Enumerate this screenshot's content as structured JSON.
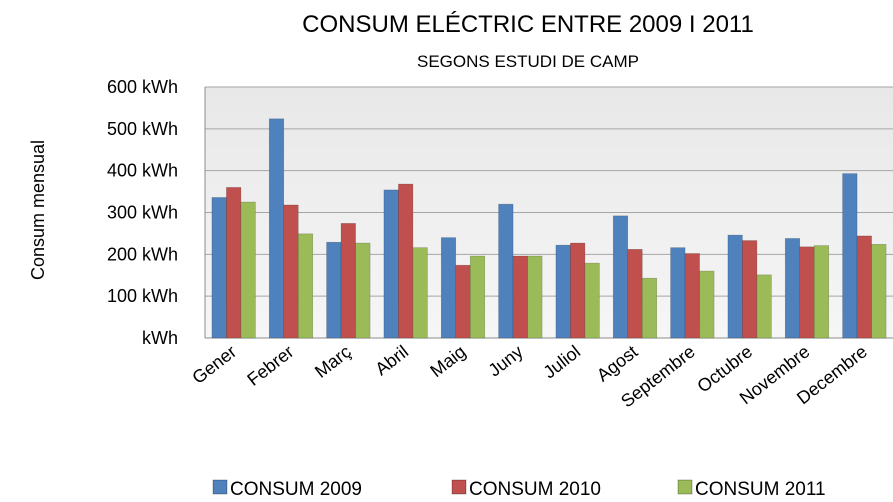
{
  "chart_data": {
    "type": "bar",
    "title": "CONSUM ELÉCTRIC ENTRE 2009 I 2011",
    "subtitle": "SEGONS ESTUDI DE CAMP",
    "xlabel": "",
    "ylabel": "Consum mensual",
    "ylim": [
      0,
      600
    ],
    "yticks": [
      {
        "value": 0,
        "label": "kWh"
      },
      {
        "value": 100,
        "label": "100 kWh"
      },
      {
        "value": 200,
        "label": "200 kWh"
      },
      {
        "value": 300,
        "label": "300 kWh"
      },
      {
        "value": 400,
        "label": "400 kWh"
      },
      {
        "value": 500,
        "label": "500 kWh"
      },
      {
        "value": 600,
        "label": "600 kWh"
      }
    ],
    "grid": true,
    "legend_position": "bottom",
    "categories": [
      "Gener",
      "Febrer",
      "Març",
      "Abril",
      "Maig",
      "Juny",
      "Juliol",
      "Agost",
      "Septembre",
      "Octubre",
      "Novembre",
      "Decembre"
    ],
    "series": [
      {
        "name": "CONSUM 2009",
        "color": "#4f81bd",
        "values": [
          336,
          524,
          229,
          354,
          240,
          320,
          222,
          292,
          216,
          246,
          238,
          393
        ]
      },
      {
        "name": "CONSUM 2010",
        "color": "#c0504d",
        "values": [
          360,
          318,
          274,
          368,
          174,
          196,
          227,
          212,
          202,
          233,
          218,
          244
        ]
      },
      {
        "name": "CONSUM 2011",
        "color": "#9bbb59",
        "values": [
          325,
          249,
          227,
          216,
          196,
          196,
          179,
          143,
          160,
          151,
          221,
          224
        ]
      }
    ]
  }
}
